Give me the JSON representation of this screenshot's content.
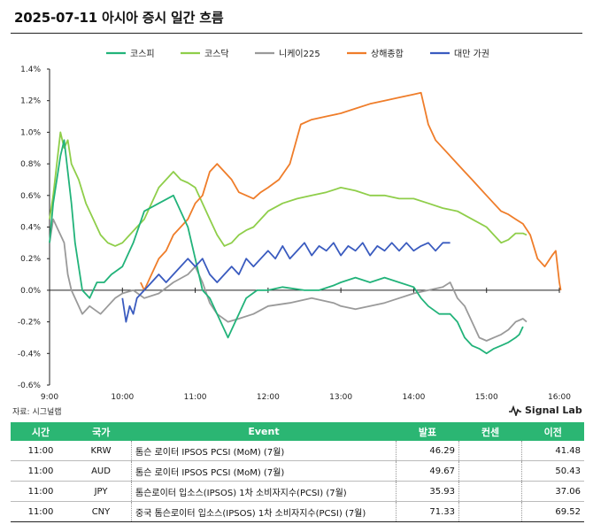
{
  "title": "2025-07-11 아시아 증시 일간 흐름",
  "source": "자료: 시그널랩",
  "brand": "Signal Lab",
  "chart_data": {
    "type": "line",
    "x_ticks": [
      "9:00",
      "10:00",
      "11:00",
      "12:00",
      "13:00",
      "14:00",
      "15:00",
      "16:00"
    ],
    "y_ticks": [
      "1.4%",
      "1.2%",
      "1.0%",
      "0.8%",
      "0.6%",
      "0.4%",
      "0.2%",
      "0.0%",
      "-0.2%",
      "-0.4%",
      "-0.6%"
    ],
    "ylim": [
      -0.6,
      1.4
    ],
    "xlim_hours": [
      9,
      16
    ],
    "legend_position": "top",
    "series": [
      {
        "name": "코스피",
        "color": "#22b37a",
        "points": [
          [
            9.0,
            0.3
          ],
          [
            9.05,
            0.55
          ],
          [
            9.1,
            0.7
          ],
          [
            9.15,
            0.85
          ],
          [
            9.2,
            0.95
          ],
          [
            9.25,
            0.75
          ],
          [
            9.3,
            0.55
          ],
          [
            9.35,
            0.3
          ],
          [
            9.45,
            0.0
          ],
          [
            9.55,
            -0.05
          ],
          [
            9.65,
            0.05
          ],
          [
            9.75,
            0.05
          ],
          [
            9.85,
            0.1
          ],
          [
            10.0,
            0.15
          ],
          [
            10.15,
            0.3
          ],
          [
            10.3,
            0.5
          ],
          [
            10.5,
            0.55
          ],
          [
            10.7,
            0.6
          ],
          [
            10.8,
            0.5
          ],
          [
            10.9,
            0.4
          ],
          [
            11.0,
            0.2
          ],
          [
            11.1,
            0.0
          ],
          [
            11.2,
            -0.05
          ],
          [
            11.3,
            -0.15
          ],
          [
            11.45,
            -0.3
          ],
          [
            11.55,
            -0.2
          ],
          [
            11.7,
            -0.05
          ],
          [
            11.85,
            0.0
          ],
          [
            12.0,
            0.0
          ],
          [
            12.2,
            0.02
          ],
          [
            12.5,
            0.0
          ],
          [
            12.7,
            0.0
          ],
          [
            12.9,
            0.03
          ],
          [
            13.0,
            0.05
          ],
          [
            13.2,
            0.08
          ],
          [
            13.4,
            0.05
          ],
          [
            13.6,
            0.08
          ],
          [
            13.8,
            0.05
          ],
          [
            14.0,
            0.02
          ],
          [
            14.1,
            -0.05
          ],
          [
            14.2,
            -0.1
          ],
          [
            14.35,
            -0.15
          ],
          [
            14.5,
            -0.15
          ],
          [
            14.6,
            -0.2
          ],
          [
            14.7,
            -0.3
          ],
          [
            14.8,
            -0.35
          ],
          [
            14.9,
            -0.37
          ],
          [
            15.0,
            -0.4
          ],
          [
            15.1,
            -0.37
          ],
          [
            15.2,
            -0.35
          ],
          [
            15.3,
            -0.33
          ],
          [
            15.4,
            -0.3
          ],
          [
            15.45,
            -0.28
          ],
          [
            15.5,
            -0.23
          ]
        ]
      },
      {
        "name": "코스닥",
        "color": "#8fce4a",
        "points": [
          [
            9.0,
            0.45
          ],
          [
            9.05,
            0.6
          ],
          [
            9.1,
            0.8
          ],
          [
            9.15,
            1.0
          ],
          [
            9.2,
            0.9
          ],
          [
            9.25,
            0.95
          ],
          [
            9.3,
            0.8
          ],
          [
            9.4,
            0.7
          ],
          [
            9.5,
            0.55
          ],
          [
            9.6,
            0.45
          ],
          [
            9.7,
            0.35
          ],
          [
            9.8,
            0.3
          ],
          [
            9.9,
            0.28
          ],
          [
            10.0,
            0.3
          ],
          [
            10.1,
            0.35
          ],
          [
            10.2,
            0.4
          ],
          [
            10.3,
            0.45
          ],
          [
            10.4,
            0.55
          ],
          [
            10.5,
            0.65
          ],
          [
            10.6,
            0.7
          ],
          [
            10.7,
            0.75
          ],
          [
            10.8,
            0.7
          ],
          [
            10.9,
            0.68
          ],
          [
            11.0,
            0.65
          ],
          [
            11.1,
            0.55
          ],
          [
            11.2,
            0.45
          ],
          [
            11.3,
            0.35
          ],
          [
            11.4,
            0.28
          ],
          [
            11.5,
            0.3
          ],
          [
            11.6,
            0.35
          ],
          [
            11.7,
            0.38
          ],
          [
            11.8,
            0.4
          ],
          [
            11.9,
            0.45
          ],
          [
            12.0,
            0.5
          ],
          [
            12.2,
            0.55
          ],
          [
            12.4,
            0.58
          ],
          [
            12.6,
            0.6
          ],
          [
            12.8,
            0.62
          ],
          [
            13.0,
            0.65
          ],
          [
            13.2,
            0.63
          ],
          [
            13.4,
            0.6
          ],
          [
            13.6,
            0.6
          ],
          [
            13.8,
            0.58
          ],
          [
            14.0,
            0.58
          ],
          [
            14.2,
            0.55
          ],
          [
            14.4,
            0.52
          ],
          [
            14.6,
            0.5
          ],
          [
            14.8,
            0.45
          ],
          [
            15.0,
            0.4
          ],
          [
            15.1,
            0.35
          ],
          [
            15.2,
            0.3
          ],
          [
            15.3,
            0.32
          ],
          [
            15.4,
            0.36
          ],
          [
            15.5,
            0.36
          ],
          [
            15.55,
            0.35
          ]
        ]
      },
      {
        "name": "니케이225",
        "color": "#9a9a9a",
        "points": [
          [
            9.0,
            0.3
          ],
          [
            9.05,
            0.45
          ],
          [
            9.1,
            0.4
          ],
          [
            9.2,
            0.3
          ],
          [
            9.25,
            0.1
          ],
          [
            9.3,
            0.0
          ],
          [
            9.35,
            -0.05
          ],
          [
            9.45,
            -0.15
          ],
          [
            9.55,
            -0.1
          ],
          [
            9.7,
            -0.15
          ],
          [
            9.8,
            -0.1
          ],
          [
            9.9,
            -0.05
          ],
          [
            10.0,
            -0.02
          ],
          [
            10.15,
            0.0
          ],
          [
            10.3,
            -0.05
          ],
          [
            10.5,
            -0.02
          ],
          [
            10.7,
            0.05
          ],
          [
            10.9,
            0.1
          ],
          [
            11.0,
            0.15
          ],
          [
            11.1,
            0.05
          ],
          [
            11.2,
            -0.08
          ],
          [
            11.3,
            -0.15
          ],
          [
            11.45,
            -0.2
          ],
          [
            11.6,
            -0.18
          ],
          [
            11.8,
            -0.15
          ],
          [
            12.0,
            -0.1
          ],
          [
            12.3,
            -0.08
          ],
          [
            12.6,
            -0.05
          ],
          [
            12.9,
            -0.08
          ],
          [
            13.0,
            -0.1
          ],
          [
            13.2,
            -0.12
          ],
          [
            13.4,
            -0.1
          ],
          [
            13.6,
            -0.08
          ],
          [
            13.8,
            -0.05
          ],
          [
            14.0,
            -0.02
          ],
          [
            14.2,
            0.0
          ],
          [
            14.4,
            0.02
          ],
          [
            14.5,
            0.05
          ],
          [
            14.55,
            0.0
          ],
          [
            14.6,
            -0.05
          ],
          [
            14.7,
            -0.1
          ],
          [
            14.8,
            -0.2
          ],
          [
            14.9,
            -0.3
          ],
          [
            15.0,
            -0.32
          ],
          [
            15.1,
            -0.3
          ],
          [
            15.2,
            -0.28
          ],
          [
            15.3,
            -0.25
          ],
          [
            15.4,
            -0.2
          ],
          [
            15.5,
            -0.18
          ],
          [
            15.55,
            -0.2
          ]
        ]
      },
      {
        "name": "상해종합",
        "color": "#ef7d2a",
        "points": [
          [
            10.25,
            0.05
          ],
          [
            10.3,
            0.0
          ],
          [
            10.4,
            0.1
          ],
          [
            10.5,
            0.2
          ],
          [
            10.6,
            0.25
          ],
          [
            10.7,
            0.35
          ],
          [
            10.8,
            0.4
          ],
          [
            10.9,
            0.45
          ],
          [
            11.0,
            0.55
          ],
          [
            11.1,
            0.6
          ],
          [
            11.2,
            0.75
          ],
          [
            11.3,
            0.8
          ],
          [
            11.4,
            0.75
          ],
          [
            11.5,
            0.7
          ],
          [
            11.6,
            0.62
          ],
          [
            11.7,
            0.6
          ],
          [
            11.8,
            0.58
          ],
          [
            11.9,
            0.62
          ],
          [
            12.0,
            0.65
          ],
          [
            12.15,
            0.7
          ],
          [
            12.3,
            0.8
          ],
          [
            12.45,
            1.05
          ],
          [
            12.6,
            1.08
          ],
          [
            12.8,
            1.1
          ],
          [
            13.0,
            1.12
          ],
          [
            13.2,
            1.15
          ],
          [
            13.4,
            1.18
          ],
          [
            13.6,
            1.2
          ],
          [
            13.8,
            1.22
          ],
          [
            14.0,
            1.24
          ],
          [
            14.1,
            1.25
          ],
          [
            14.15,
            1.15
          ],
          [
            14.2,
            1.05
          ],
          [
            14.3,
            0.95
          ],
          [
            14.4,
            0.9
          ],
          [
            14.5,
            0.85
          ],
          [
            14.6,
            0.8
          ],
          [
            14.7,
            0.75
          ],
          [
            14.8,
            0.7
          ],
          [
            14.9,
            0.65
          ],
          [
            15.0,
            0.6
          ],
          [
            15.1,
            0.55
          ],
          [
            15.2,
            0.5
          ],
          [
            15.3,
            0.48
          ],
          [
            15.4,
            0.45
          ],
          [
            15.5,
            0.42
          ],
          [
            15.6,
            0.35
          ],
          [
            15.7,
            0.2
          ],
          [
            15.8,
            0.15
          ],
          [
            15.9,
            0.22
          ],
          [
            15.95,
            0.25
          ],
          [
            16.0,
            0.05
          ],
          [
            16.02,
            0.0
          ]
        ]
      },
      {
        "name": "대만 가권",
        "color": "#3a5bbf",
        "points": [
          [
            10.0,
            -0.05
          ],
          [
            10.05,
            -0.2
          ],
          [
            10.1,
            -0.1
          ],
          [
            10.15,
            -0.15
          ],
          [
            10.2,
            -0.05
          ],
          [
            10.3,
            0.0
          ],
          [
            10.4,
            0.05
          ],
          [
            10.5,
            0.1
          ],
          [
            10.6,
            0.05
          ],
          [
            10.7,
            0.1
          ],
          [
            10.8,
            0.15
          ],
          [
            10.9,
            0.2
          ],
          [
            11.0,
            0.15
          ],
          [
            11.1,
            0.2
          ],
          [
            11.2,
            0.1
          ],
          [
            11.3,
            0.05
          ],
          [
            11.4,
            0.1
          ],
          [
            11.5,
            0.15
          ],
          [
            11.6,
            0.1
          ],
          [
            11.7,
            0.2
          ],
          [
            11.8,
            0.15
          ],
          [
            11.9,
            0.2
          ],
          [
            12.0,
            0.25
          ],
          [
            12.1,
            0.2
          ],
          [
            12.2,
            0.28
          ],
          [
            12.3,
            0.2
          ],
          [
            12.4,
            0.25
          ],
          [
            12.5,
            0.3
          ],
          [
            12.6,
            0.22
          ],
          [
            12.7,
            0.28
          ],
          [
            12.8,
            0.25
          ],
          [
            12.9,
            0.3
          ],
          [
            13.0,
            0.22
          ],
          [
            13.1,
            0.28
          ],
          [
            13.2,
            0.25
          ],
          [
            13.3,
            0.3
          ],
          [
            13.4,
            0.22
          ],
          [
            13.5,
            0.28
          ],
          [
            13.6,
            0.25
          ],
          [
            13.7,
            0.3
          ],
          [
            13.8,
            0.25
          ],
          [
            13.9,
            0.3
          ],
          [
            14.0,
            0.25
          ],
          [
            14.1,
            0.28
          ],
          [
            14.2,
            0.3
          ],
          [
            14.3,
            0.25
          ],
          [
            14.4,
            0.3
          ],
          [
            14.5,
            0.3
          ]
        ]
      }
    ]
  },
  "table": {
    "headers": [
      "시간",
      "국가",
      "Event",
      "발표",
      "컨센",
      "이전"
    ],
    "rows": [
      {
        "time": "11:00",
        "country": "KRW",
        "event": "톰슨 로이터 IPSOS PCSI (MoM) (7월)",
        "actual": "46.29",
        "forecast": "",
        "previous": "41.48"
      },
      {
        "time": "11:00",
        "country": "AUD",
        "event": "톰슨 로이터 IPSOS PCSI (MoM) (7월)",
        "actual": "49.67",
        "forecast": "",
        "previous": "50.43"
      },
      {
        "time": "11:00",
        "country": "JPY",
        "event": "톰슨로이터 입소스(IPSOS) 1차 소비자지수(PCSI) (7월)",
        "actual": "35.93",
        "forecast": "",
        "previous": "37.06"
      },
      {
        "time": "11:00",
        "country": "CNY",
        "event": "중국 톰슨로이터 입소스(IPSOS) 1차 소비자지수(PCSI) (7월)",
        "actual": "71.33",
        "forecast": "",
        "previous": "69.52"
      }
    ]
  }
}
